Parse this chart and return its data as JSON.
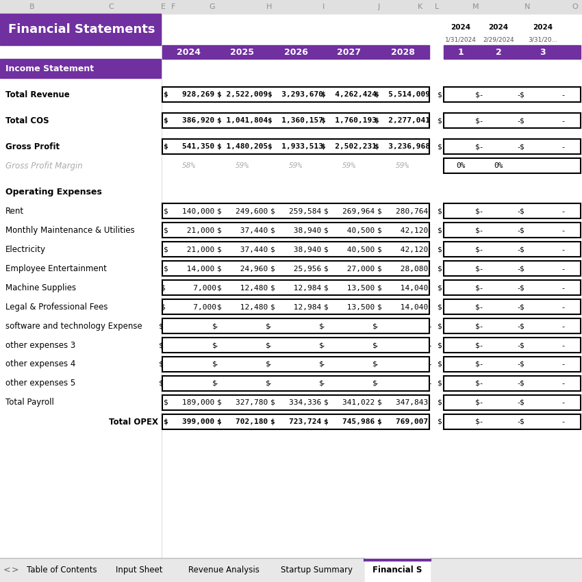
{
  "title": "Financial Statements",
  "purple": "#7030a0",
  "white": "#ffffff",
  "black": "#000000",
  "gray_header_bg": "#e0e0e0",
  "gray_header_text": "#909090",
  "gray_text": "#aaaaaa",
  "background": "#ffffff",
  "col_letters": [
    "B",
    "C",
    "E",
    "F",
    "G",
    "H",
    "I",
    "J",
    "K",
    "L",
    "M",
    "N",
    "O"
  ],
  "years": [
    "2024",
    "2025",
    "2026",
    "2027",
    "2028"
  ],
  "monthly_years": [
    "2024",
    "2024",
    "2024"
  ],
  "monthly_dates": [
    "1/31/2024",
    "2/29/2024",
    "3/31/20..."
  ],
  "monthly_nums": [
    "1",
    "2",
    "3"
  ],
  "rows": [
    {
      "label": "Income Statement",
      "type": "section_header",
      "values": [],
      "monthly": [],
      "bold": true
    },
    {
      "label": "",
      "type": "spacer",
      "values": [],
      "monthly": []
    },
    {
      "label": "Total Revenue",
      "type": "boxed_row",
      "values": [
        "$   928,269",
        "$ 2,522,009",
        "$  3,293,670",
        "$  4,262,424",
        "$  5,514,009"
      ],
      "monthly": [
        "$        -",
        "$        -",
        "$        -"
      ],
      "bold": true
    },
    {
      "label": "",
      "type": "spacer",
      "values": [],
      "monthly": []
    },
    {
      "label": "Total COS",
      "type": "boxed_row",
      "values": [
        "$   386,920",
        "$ 1,041,804",
        "$  1,360,157",
        "$  1,760,193",
        "$  2,277,041"
      ],
      "monthly": [
        "$        -",
        "$        -",
        "$        -"
      ],
      "bold": true
    },
    {
      "label": "",
      "type": "spacer",
      "values": [],
      "monthly": []
    },
    {
      "label": "Gross Profit",
      "type": "boxed_row",
      "values": [
        "$   541,350",
        "$ 1,480,205",
        "$  1,933,513",
        "$  2,502,231",
        "$  3,236,968"
      ],
      "monthly": [
        "$        -",
        "$        -",
        "$        -"
      ],
      "bold": true
    },
    {
      "label": "Gross Profit Margin",
      "type": "margin_row",
      "values": [
        "58%",
        "59%",
        "59%",
        "59%",
        "59%"
      ],
      "monthly": [
        "0%",
        "0%",
        ""
      ],
      "bold": false
    },
    {
      "label": "",
      "type": "spacer",
      "values": [],
      "monthly": []
    },
    {
      "label": "Operating Expenses",
      "type": "subsection_header",
      "values": [],
      "monthly": [],
      "bold": true
    },
    {
      "label": "Rent",
      "type": "opex_row",
      "values": [
        "$   140,000",
        "$   249,600",
        "$   259,584",
        "$   269,964",
        "$   280,764"
      ],
      "monthly": [
        "$        -",
        "$        -",
        "$        -"
      ],
      "bold": false
    },
    {
      "label": "Monthly Maintenance & Utilities",
      "type": "opex_row",
      "values": [
        "$    21,000",
        "$    37,440",
        "$    38,940",
        "$    40,500",
        "$    42,120"
      ],
      "monthly": [
        "$        -",
        "$        -",
        "$        -"
      ],
      "bold": false
    },
    {
      "label": "Electricity",
      "type": "opex_row",
      "values": [
        "$    21,000",
        "$    37,440",
        "$    38,940",
        "$    40,500",
        "$    42,120"
      ],
      "monthly": [
        "$        -",
        "$        -",
        "$        -"
      ],
      "bold": false
    },
    {
      "label": "Employee Entertainment",
      "type": "opex_row",
      "values": [
        "$    14,000",
        "$    24,960",
        "$    25,956",
        "$    27,000",
        "$    28,080"
      ],
      "monthly": [
        "$        -",
        "$        -",
        "$        -"
      ],
      "bold": false
    },
    {
      "label": "Machine Supplies",
      "type": "opex_row",
      "values": [
        "$      7,000",
        "$    12,480",
        "$    12,984",
        "$    13,500",
        "$    14,040"
      ],
      "monthly": [
        "$        -",
        "$        -",
        "$        -"
      ],
      "bold": false
    },
    {
      "label": "Legal & Professional Fees",
      "type": "opex_row",
      "values": [
        "$      7,000",
        "$    12,480",
        "$    12,984",
        "$    13,500",
        "$    14,040"
      ],
      "monthly": [
        "$        -",
        "$        -",
        "$        -"
      ],
      "bold": false
    },
    {
      "label": "software and technology Expense",
      "type": "opex_row",
      "values": [
        "$           -",
        "$           -",
        "$           -",
        "$           -",
        "$           -"
      ],
      "monthly": [
        "$        -",
        "$        -",
        "$        -"
      ],
      "bold": false
    },
    {
      "label": "other expenses 3",
      "type": "opex_row",
      "values": [
        "$           -",
        "$           -",
        "$           -",
        "$           -",
        "$           -"
      ],
      "monthly": [
        "$        -",
        "$        -",
        "$        -"
      ],
      "bold": false
    },
    {
      "label": "other expenses 4",
      "type": "opex_row",
      "values": [
        "$           -",
        "$           -",
        "$           -",
        "$           -",
        "$           -"
      ],
      "monthly": [
        "$        -",
        "$        -",
        "$        -"
      ],
      "bold": false
    },
    {
      "label": "other expenses 5",
      "type": "opex_row",
      "values": [
        "$           -",
        "$           -",
        "$           -",
        "$           -",
        "$           -"
      ],
      "monthly": [
        "$        -",
        "$        -",
        "$        -"
      ],
      "bold": false
    },
    {
      "label": "Total Payroll",
      "type": "opex_row",
      "values": [
        "$   189,000",
        "$   327,780",
        "$   334,336",
        "$   341,022",
        "$   347,843"
      ],
      "monthly": [
        "$        -",
        "$        -",
        "$        -"
      ],
      "bold": false
    },
    {
      "label": "Total OPEX",
      "type": "total_opex_row",
      "values": [
        "$   399,000",
        "$   702,180",
        "$   723,724",
        "$   745,986",
        "$   769,007"
      ],
      "monthly": [
        "$        -",
        "$        -",
        "$        -"
      ],
      "bold": true
    }
  ],
  "tab_labels": [
    "Table of Contents",
    "Input Sheet",
    "Revenue Analysis",
    "Startup Summary",
    "Financial S"
  ],
  "active_tab": "Financial S"
}
